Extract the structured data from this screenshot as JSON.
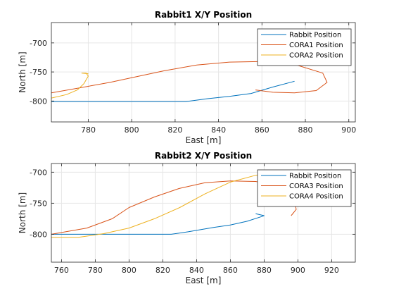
{
  "chart_data": [
    {
      "type": "line",
      "title": "Rabbit1 X/Y Position",
      "xlabel": "East [m]",
      "ylabel": "North [m]",
      "xlim": [
        763,
        903
      ],
      "ylim": [
        -836,
        -665
      ],
      "xticks": [
        780,
        800,
        820,
        840,
        860,
        880,
        900
      ],
      "yticks": [
        -800,
        -750,
        -700
      ],
      "grid": true,
      "legend_position": "top-right",
      "series": [
        {
          "name": "Rabbit Position",
          "color": "#0072BD",
          "x": [
            763,
            790,
            810,
            825,
            835,
            845,
            855,
            865,
            875
          ],
          "y": [
            -801,
            -801,
            -801,
            -801,
            -796,
            -792,
            -787,
            -776,
            -766
          ]
        },
        {
          "name": "CORA1 Position",
          "color": "#D95319",
          "x": [
            763,
            775,
            790,
            800,
            815,
            830,
            845,
            860,
            875,
            888,
            890,
            885,
            875,
            865,
            857
          ],
          "y": [
            -786,
            -778,
            -768,
            -760,
            -748,
            -738,
            -733,
            -732,
            -737,
            -752,
            -768,
            -782,
            -786,
            -785,
            -781
          ]
        },
        {
          "name": "CORA2 Position",
          "color": "#EDB120",
          "x": [
            763,
            770,
            775,
            778,
            780,
            779,
            777,
            780
          ],
          "y": [
            -795,
            -789,
            -781,
            -770,
            -757,
            -752,
            -752,
            -753
          ]
        }
      ]
    },
    {
      "type": "line",
      "title": "Rabbit2 X/Y Position",
      "xlabel": "East [m]",
      "ylabel": "North [m]",
      "xlim": [
        754,
        934
      ],
      "ylim": [
        -845,
        -686
      ],
      "xticks": [
        760,
        780,
        800,
        820,
        840,
        860,
        880,
        900,
        920
      ],
      "yticks": [
        -800,
        -750,
        -700
      ],
      "grid": true,
      "legend_position": "top-right",
      "series": [
        {
          "name": "Rabbit Position",
          "color": "#0072BD",
          "x": [
            754,
            780,
            800,
            825,
            835,
            850,
            860,
            870,
            878,
            880,
            875
          ],
          "y": [
            -800,
            -800,
            -800,
            -800,
            -796,
            -789,
            -785,
            -779,
            -772,
            -770,
            -767
          ]
        },
        {
          "name": "CORA3 Position",
          "color": "#D95319",
          "x": [
            754,
            775,
            790,
            800,
            815,
            830,
            845,
            860,
            875,
            885,
            893,
            898,
            899,
            896
          ],
          "y": [
            -800,
            -790,
            -775,
            -757,
            -740,
            -726,
            -717,
            -714,
            -715,
            -720,
            -730,
            -745,
            -760,
            -770
          ]
        },
        {
          "name": "CORA4 Position",
          "color": "#EDB120",
          "x": [
            754,
            770,
            785,
            800,
            815,
            830,
            845,
            860,
            875,
            885
          ],
          "y": [
            -805,
            -805,
            -799,
            -790,
            -775,
            -757,
            -735,
            -716,
            -705,
            -702
          ]
        }
      ]
    }
  ]
}
